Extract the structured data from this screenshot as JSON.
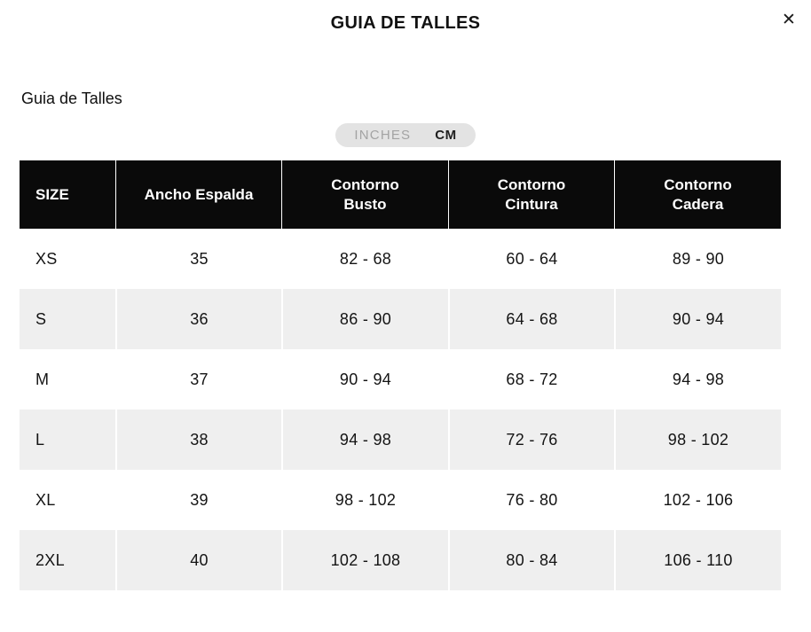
{
  "modal": {
    "title": "GUIA DE TALLES",
    "close_icon": "✕"
  },
  "section": {
    "subtitle": "Guia de Talles"
  },
  "unit_toggle": {
    "selected": "CM",
    "options": [
      {
        "label": "INCHES",
        "selected": false
      },
      {
        "label": "CM",
        "selected": true
      }
    ]
  },
  "table": {
    "headers": [
      "SIZE",
      "Ancho Espalda",
      "Contorno Busto",
      "Contorno Cintura",
      "Contorno Cadera"
    ],
    "rows": [
      {
        "size": "XS",
        "cells": [
          "35",
          "82 - 68",
          "60 - 64",
          "89 - 90"
        ]
      },
      {
        "size": "S",
        "cells": [
          "36",
          "86 - 90",
          "64 - 68",
          "90 - 94"
        ]
      },
      {
        "size": "M",
        "cells": [
          "37",
          "90 - 94",
          "68 - 72",
          "94 - 98"
        ]
      },
      {
        "size": "L",
        "cells": [
          "38",
          "94 - 98",
          "72 - 76",
          "98 - 102"
        ]
      },
      {
        "size": "XL",
        "cells": [
          "39",
          "98 - 102",
          "76 - 80",
          "102 - 106"
        ]
      },
      {
        "size": "2XL",
        "cells": [
          "40",
          "102 - 108",
          "80 - 84",
          "106 - 110"
        ]
      }
    ]
  },
  "colors": {
    "header_bg": "#0a0a0a",
    "header_text": "#ffffff",
    "row_alt_bg": "#efefef",
    "toggle_bg": "#e3e3e3",
    "toggle_inactive_text": "#a3a3a3"
  }
}
